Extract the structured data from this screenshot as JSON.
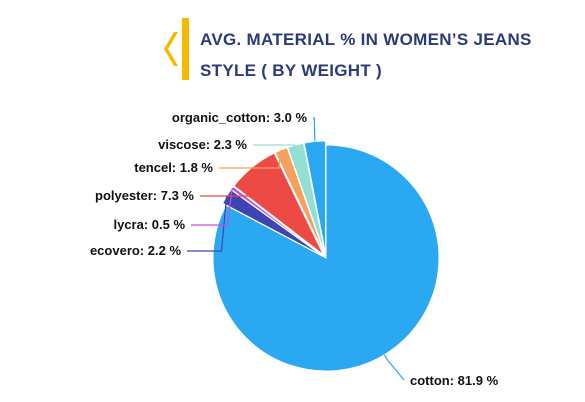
{
  "title_lines": [
    "AVG. MATERIAL % IN WOMEN’S JEANS",
    "STYLE ( BY WEIGHT )"
  ],
  "colors": {
    "title": "#2b3a78",
    "accent": "#f6b900"
  },
  "chart_data": {
    "type": "pie",
    "title": "AVG. MATERIAL % IN WOMEN’S JEANS STYLE ( BY WEIGHT )",
    "slices": [
      {
        "label": "cotton",
        "value": 81.9,
        "display": "cotton: 81.9 %",
        "color": "#2aa8f2"
      },
      {
        "label": "ecovero",
        "value": 2.2,
        "display": "ecovero: 2.2 %",
        "color": "#3d45b5"
      },
      {
        "label": "lycra",
        "value": 0.5,
        "display": "lycra: 0.5 %",
        "color": "#c64fd8"
      },
      {
        "label": "polyester",
        "value": 7.3,
        "display": "polyester: 7.3 %",
        "color": "#ee4a45"
      },
      {
        "label": "tencel",
        "value": 1.8,
        "display": "tencel: 1.8 %",
        "color": "#f5a05c"
      },
      {
        "label": "viscose",
        "value": 2.3,
        "display": "viscose: 2.3 %",
        "color": "#93dfd5"
      },
      {
        "label": "organic_cotton",
        "value": 3.0,
        "display": "organic_cotton: 3.0 %",
        "color": "#2aa8f2"
      }
    ]
  }
}
